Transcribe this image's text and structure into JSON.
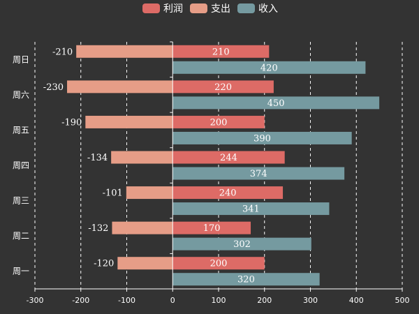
{
  "chart_data": {
    "type": "bar",
    "orientation": "horizontal",
    "categories": [
      "周一",
      "周二",
      "周三",
      "周四",
      "周五",
      "周六",
      "周日"
    ],
    "series": [
      {
        "name": "利润",
        "values": [
          200,
          170,
          240,
          244,
          200,
          220,
          210
        ],
        "color": "#dd6b66"
      },
      {
        "name": "支出",
        "values": [
          -120,
          -132,
          -101,
          -134,
          -190,
          -230,
          -210
        ],
        "color": "#e69d87"
      },
      {
        "name": "收入",
        "values": [
          320,
          302,
          341,
          374,
          390,
          450,
          420
        ],
        "color": "#759aa0"
      }
    ],
    "xlim": [
      -300,
      500
    ],
    "x_ticks": [
      -300,
      -200,
      -100,
      0,
      100,
      200,
      300,
      400,
      500
    ],
    "grid": true,
    "legend_position": "top-center",
    "title": "",
    "xlabel": "",
    "ylabel": ""
  }
}
